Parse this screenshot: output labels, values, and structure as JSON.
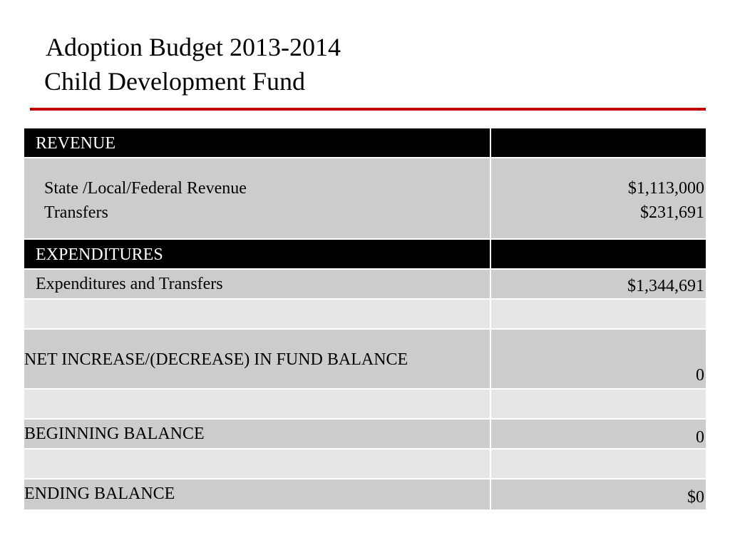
{
  "title": {
    "line1": "Adoption Budget 2013-2014",
    "line2": "Child Development Fund"
  },
  "table": {
    "revenue_header": "REVENUE",
    "revenue_items": [
      {
        "label": "State /Local/Federal Revenue",
        "value": "$1,113,000"
      },
      {
        "label": "Transfers",
        "value": "$231,691"
      }
    ],
    "expenditures_header": "EXPENDITURES",
    "expenditures_item": {
      "label": "Expenditures and Transfers",
      "value": "$1,344,691"
    },
    "net_change": {
      "label": "NET INCREASE/(DECREASE) IN FUND BALANCE",
      "value": "0"
    },
    "beginning_balance": {
      "label": "BEGINNING BALANCE",
      "value": "0"
    },
    "ending_balance": {
      "label": "ENDING BALANCE",
      "value": "$0"
    }
  },
  "colors": {
    "accent_rule": "#c00000",
    "header_bg": "#000000",
    "row_dark": "#cccccc",
    "row_light": "#e6e6e6"
  }
}
